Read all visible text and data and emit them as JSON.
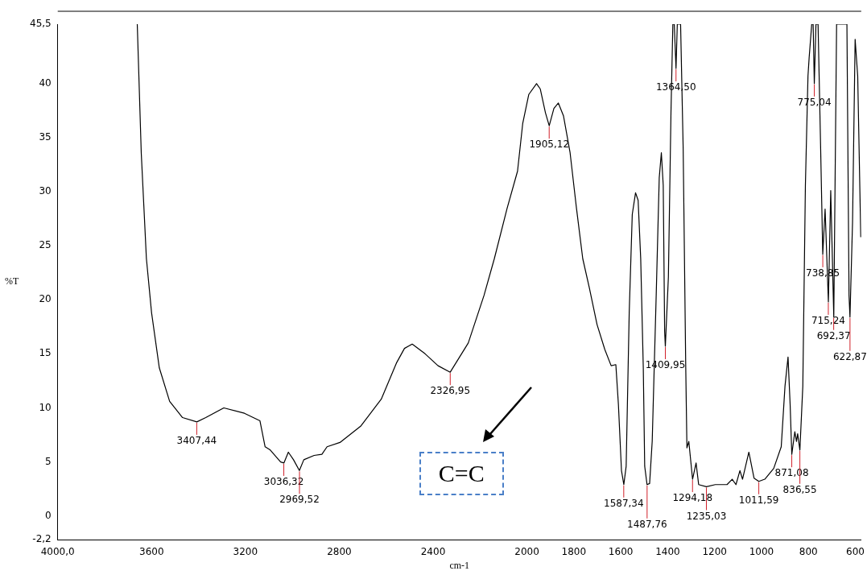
{
  "chart_data": {
    "type": "line",
    "xlabel": "cm-1",
    "ylabel": "%T",
    "color": "#000000",
    "marker": "none",
    "xlim": [
      4000,
      575
    ],
    "ylim": [
      -2.2,
      45.5
    ],
    "xticks": [
      {
        "value": 4000,
        "label": "4000,0"
      },
      3600,
      3200,
      2800,
      2400,
      2000,
      1800,
      1600,
      1400,
      1200,
      1000,
      800,
      600
    ],
    "yticks": [
      {
        "value": -2.2,
        "label": "-2,2"
      },
      0,
      5,
      10,
      15,
      20,
      25,
      30,
      35,
      40,
      {
        "value": 45.5,
        "label": "45,5"
      }
    ],
    "x": [
      3661,
      3644,
      3622,
      3600,
      3567,
      3523,
      3468,
      3407,
      3369,
      3292,
      3204,
      3138,
      3116,
      3094,
      3050,
      3036,
      3017,
      2995,
      2970,
      2951,
      2907,
      2874,
      2852,
      2797,
      2709,
      2621,
      2555,
      2522,
      2489,
      2434,
      2379,
      2327,
      2250,
      2183,
      2139,
      2084,
      2040,
      2018,
      1992,
      1959,
      1943,
      1921,
      1905,
      1885,
      1866,
      1844,
      1816,
      1789,
      1762,
      1734,
      1701,
      1668,
      1641,
      1621,
      1610,
      1597,
      1587,
      1577,
      1564,
      1551,
      1537,
      1526,
      1515,
      1504,
      1498,
      1488,
      1477,
      1466,
      1449,
      1436,
      1427,
      1419,
      1413,
      1410,
      1397,
      1386,
      1378,
      1372,
      1364.5,
      1359,
      1345,
      1334,
      1323,
      1318,
      1310,
      1294,
      1279,
      1268,
      1235,
      1197,
      1147,
      1125,
      1109,
      1092,
      1081,
      1054,
      1032,
      1011.6,
      986,
      948,
      916,
      900,
      887,
      878,
      871,
      858,
      851,
      846,
      836.5,
      824,
      813,
      802,
      797,
      786,
      780,
      775,
      768,
      759,
      748,
      739,
      729,
      715,
      705,
      692,
      680,
      636,
      627,
      623,
      612,
      601,
      590,
      577
    ],
    "values": [
      45.5,
      33.6,
      23.8,
      18.8,
      13.7,
      10.6,
      9.1,
      8.7,
      9.1,
      10.0,
      9.5,
      8.8,
      6.4,
      6.1,
      5.0,
      4.9,
      5.9,
      5.2,
      4.2,
      5.2,
      5.6,
      5.7,
      6.4,
      6.8,
      8.3,
      10.8,
      14.2,
      15.5,
      15.9,
      15.0,
      13.9,
      13.3,
      16.0,
      20.4,
      23.8,
      28.5,
      31.9,
      36.3,
      39.0,
      40.0,
      39.5,
      37.3,
      36.1,
      37.7,
      38.2,
      37.0,
      33.6,
      28.5,
      23.8,
      21.1,
      17.7,
      15.4,
      13.9,
      14.0,
      10.3,
      4.2,
      2.9,
      4.6,
      18.8,
      27.9,
      29.9,
      29.2,
      23.8,
      13.7,
      4.6,
      2.9,
      3.0,
      6.9,
      20.4,
      31.3,
      33.6,
      30.6,
      17.1,
      15.7,
      22.1,
      37.3,
      45.5,
      45.5,
      41.4,
      45.5,
      45.5,
      34.0,
      13.7,
      6.3,
      6.9,
      3.4,
      4.9,
      2.9,
      2.7,
      2.9,
      2.9,
      3.4,
      2.9,
      4.2,
      3.4,
      5.9,
      3.5,
      3.2,
      3.4,
      4.4,
      6.4,
      12.0,
      14.7,
      10.3,
      5.7,
      7.8,
      6.9,
      7.6,
      6.1,
      12.0,
      30.6,
      40.7,
      42.4,
      45.5,
      45.5,
      40.0,
      45.5,
      45.5,
      34.0,
      24.2,
      28.4,
      19.8,
      30.1,
      18.4,
      45.5,
      45.5,
      20.4,
      18.4,
      27.2,
      44.1,
      40.7,
      25.8
    ],
    "annotations": [
      {
        "text": "3407,44",
        "x": 3407.44,
        "y": 8.7
      },
      {
        "text": "3036,32",
        "x": 3036.32,
        "y": 4.9
      },
      {
        "text": "2969,52",
        "x": 2969.52,
        "y": 4.2
      },
      {
        "text": "2326,95",
        "x": 2326.95,
        "y": 13.3
      },
      {
        "text": "1905,12",
        "x": 1905.12,
        "y": 36.1
      },
      {
        "text": "1587,34",
        "x": 1587.34,
        "y": 2.9
      },
      {
        "text": "1487,76",
        "x": 1487.76,
        "y": 2.9
      },
      {
        "text": "1409,95",
        "x": 1409.95,
        "y": 15.7
      },
      {
        "text": "1364,50",
        "x": 1364.5,
        "y": 41.4
      },
      {
        "text": "1294,18",
        "x": 1294.18,
        "y": 3.4
      },
      {
        "text": "1235,03",
        "x": 1235.03,
        "y": 2.7
      },
      {
        "text": "1011,59",
        "x": 1011.59,
        "y": 3.2
      },
      {
        "text": "871,08",
        "x": 871.08,
        "y": 5.7
      },
      {
        "text": "836,55",
        "x": 836.55,
        "y": 6.1
      },
      {
        "text": "775,04",
        "x": 775.04,
        "y": 40.0
      },
      {
        "text": "738,85",
        "x": 738.85,
        "y": 24.2
      },
      {
        "text": "715,24",
        "x": 715.24,
        "y": 19.8
      },
      {
        "text": "692,37",
        "x": 692.37,
        "y": 18.4
      },
      {
        "text": "622,87",
        "x": 622.87,
        "y": 18.4
      },
      "C=C"
    ]
  }
}
